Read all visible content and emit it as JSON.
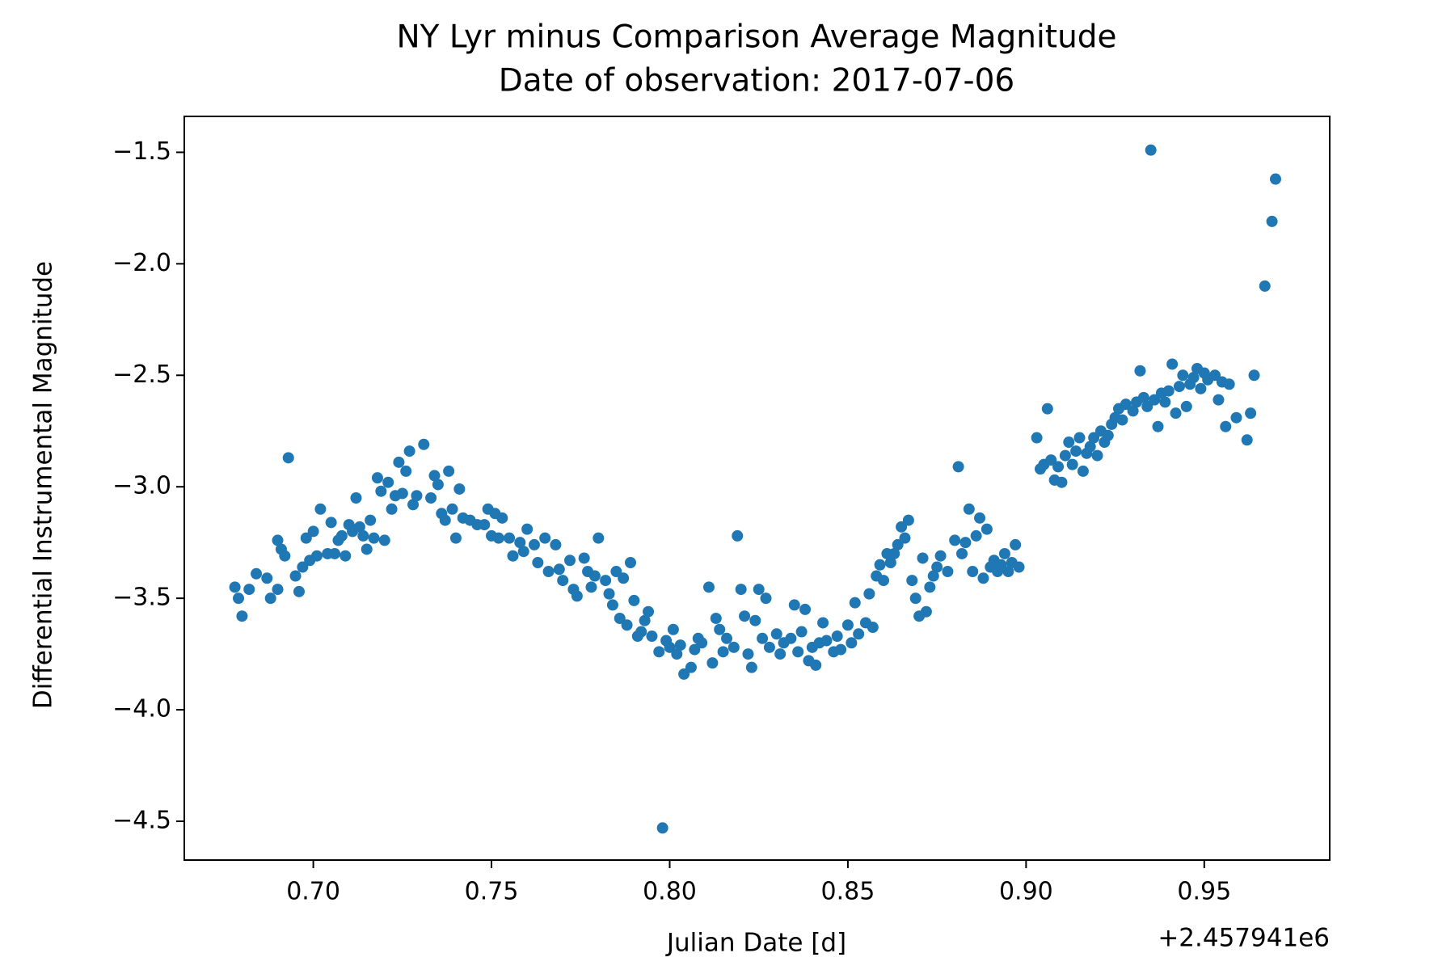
{
  "chart_data": {
    "type": "scatter",
    "title": "NY Lyr minus Comparison Average Magnitude",
    "subtitle": "Date of observation: 2017-07-06",
    "x_label": "Julian Date [d]",
    "y_label": "Differential Instrumental Magnitude",
    "x_offset_label": "+2.457941e6",
    "color": "#1f77b4",
    "xlim": [
      0.6638,
      0.9852
    ],
    "ylim": [
      -4.674,
      -1.339
    ],
    "xticks": [
      {
        "value": 0.7,
        "label": "0.70"
      },
      {
        "value": 0.75,
        "label": "0.75"
      },
      {
        "value": 0.8,
        "label": "0.80"
      },
      {
        "value": 0.85,
        "label": "0.85"
      },
      {
        "value": 0.9,
        "label": "0.90"
      },
      {
        "value": 0.95,
        "label": "0.95"
      }
    ],
    "yticks": [
      {
        "value": -1.5,
        "label": "−1.5"
      },
      {
        "value": -2.0,
        "label": "−2.0"
      },
      {
        "value": -2.5,
        "label": "−2.5"
      },
      {
        "value": -3.0,
        "label": "−3.0"
      },
      {
        "value": -3.5,
        "label": "−3.5"
      },
      {
        "value": -4.0,
        "label": "−4.0"
      },
      {
        "value": -4.5,
        "label": "−4.5"
      }
    ],
    "x": [
      0.678,
      0.679,
      0.68,
      0.682,
      0.684,
      0.687,
      0.688,
      0.69,
      0.69,
      0.691,
      0.692,
      0.693,
      0.695,
      0.696,
      0.697,
      0.698,
      0.699,
      0.7,
      0.701,
      0.702,
      0.704,
      0.705,
      0.706,
      0.707,
      0.708,
      0.709,
      0.71,
      0.711,
      0.712,
      0.713,
      0.714,
      0.715,
      0.716,
      0.717,
      0.718,
      0.719,
      0.72,
      0.721,
      0.722,
      0.723,
      0.724,
      0.725,
      0.726,
      0.727,
      0.728,
      0.729,
      0.731,
      0.733,
      0.734,
      0.735,
      0.736,
      0.737,
      0.738,
      0.739,
      0.74,
      0.741,
      0.742,
      0.744,
      0.746,
      0.748,
      0.749,
      0.75,
      0.751,
      0.752,
      0.753,
      0.755,
      0.756,
      0.758,
      0.759,
      0.76,
      0.762,
      0.763,
      0.765,
      0.766,
      0.768,
      0.769,
      0.77,
      0.772,
      0.773,
      0.774,
      0.776,
      0.777,
      0.778,
      0.779,
      0.78,
      0.782,
      0.783,
      0.784,
      0.785,
      0.786,
      0.787,
      0.788,
      0.789,
      0.79,
      0.791,
      0.792,
      0.793,
      0.794,
      0.795,
      0.797,
      0.798,
      0.799,
      0.8,
      0.801,
      0.802,
      0.803,
      0.804,
      0.806,
      0.807,
      0.808,
      0.809,
      0.811,
      0.812,
      0.813,
      0.814,
      0.815,
      0.816,
      0.818,
      0.819,
      0.82,
      0.821,
      0.822,
      0.823,
      0.824,
      0.825,
      0.826,
      0.827,
      0.828,
      0.83,
      0.831,
      0.832,
      0.834,
      0.835,
      0.836,
      0.837,
      0.838,
      0.839,
      0.84,
      0.841,
      0.842,
      0.843,
      0.844,
      0.846,
      0.847,
      0.848,
      0.85,
      0.851,
      0.852,
      0.853,
      0.855,
      0.856,
      0.857,
      0.858,
      0.859,
      0.86,
      0.861,
      0.862,
      0.863,
      0.864,
      0.865,
      0.866,
      0.867,
      0.868,
      0.869,
      0.87,
      0.871,
      0.872,
      0.873,
      0.874,
      0.875,
      0.876,
      0.878,
      0.88,
      0.881,
      0.882,
      0.883,
      0.884,
      0.885,
      0.886,
      0.887,
      0.888,
      0.889,
      0.89,
      0.891,
      0.892,
      0.893,
      0.894,
      0.895,
      0.896,
      0.897,
      0.898,
      0.903,
      0.904,
      0.905,
      0.906,
      0.907,
      0.908,
      0.909,
      0.91,
      0.911,
      0.912,
      0.913,
      0.914,
      0.915,
      0.916,
      0.917,
      0.918,
      0.919,
      0.92,
      0.921,
      0.922,
      0.923,
      0.924,
      0.925,
      0.926,
      0.927,
      0.928,
      0.93,
      0.931,
      0.932,
      0.933,
      0.934,
      0.935,
      0.936,
      0.937,
      0.938,
      0.939,
      0.94,
      0.941,
      0.942,
      0.943,
      0.944,
      0.945,
      0.946,
      0.947,
      0.948,
      0.949,
      0.95,
      0.951,
      0.953,
      0.954,
      0.955,
      0.956,
      0.957,
      0.959,
      0.962,
      0.963,
      0.964,
      0.967,
      0.969,
      0.97
    ],
    "values": [
      -3.45,
      -3.5,
      -3.58,
      -3.46,
      -3.39,
      -3.41,
      -3.5,
      -3.46,
      -3.24,
      -3.28,
      -3.31,
      -2.87,
      -3.4,
      -3.47,
      -3.36,
      -3.23,
      -3.33,
      -3.2,
      -3.31,
      -3.1,
      -3.3,
      -3.16,
      -3.3,
      -3.24,
      -3.22,
      -3.31,
      -3.17,
      -3.2,
      -3.05,
      -3.18,
      -3.22,
      -3.28,
      -3.15,
      -3.23,
      -2.96,
      -3.02,
      -3.24,
      -2.98,
      -3.1,
      -3.04,
      -2.89,
      -3.03,
      -2.93,
      -2.84,
      -3.08,
      -3.04,
      -2.81,
      -3.05,
      -2.95,
      -2.99,
      -3.12,
      -3.15,
      -2.93,
      -3.1,
      -3.23,
      -3.01,
      -3.14,
      -3.15,
      -3.17,
      -3.17,
      -3.1,
      -3.22,
      -3.12,
      -3.23,
      -3.14,
      -3.23,
      -3.31,
      -3.25,
      -3.29,
      -3.19,
      -3.26,
      -3.34,
      -3.23,
      -3.38,
      -3.26,
      -3.37,
      -3.42,
      -3.33,
      -3.46,
      -3.49,
      -3.32,
      -3.38,
      -3.45,
      -3.4,
      -3.23,
      -3.42,
      -3.48,
      -3.53,
      -3.38,
      -3.59,
      -3.41,
      -3.62,
      -3.34,
      -3.51,
      -3.67,
      -3.65,
      -3.6,
      -3.56,
      -3.67,
      -3.74,
      -4.53,
      -3.69,
      -3.72,
      -3.64,
      -3.75,
      -3.71,
      -3.84,
      -3.81,
      -3.73,
      -3.68,
      -3.7,
      -3.45,
      -3.79,
      -3.59,
      -3.64,
      -3.74,
      -3.68,
      -3.72,
      -3.22,
      -3.46,
      -3.58,
      -3.75,
      -3.81,
      -3.6,
      -3.46,
      -3.68,
      -3.5,
      -3.72,
      -3.66,
      -3.75,
      -3.7,
      -3.68,
      -3.53,
      -3.74,
      -3.65,
      -3.55,
      -3.78,
      -3.72,
      -3.8,
      -3.7,
      -3.61,
      -3.69,
      -3.74,
      -3.67,
      -3.73,
      -3.62,
      -3.7,
      -3.52,
      -3.66,
      -3.61,
      -3.48,
      -3.63,
      -3.4,
      -3.35,
      -3.42,
      -3.3,
      -3.34,
      -3.3,
      -3.26,
      -3.18,
      -3.23,
      -3.15,
      -3.42,
      -3.5,
      -3.58,
      -3.32,
      -3.56,
      -3.45,
      -3.4,
      -3.36,
      -3.31,
      -3.38,
      -3.24,
      -2.91,
      -3.3,
      -3.25,
      -3.1,
      -3.38,
      -3.22,
      -3.14,
      -3.41,
      -3.19,
      -3.36,
      -3.33,
      -3.38,
      -3.35,
      -3.3,
      -3.38,
      -3.34,
      -3.26,
      -3.36,
      -2.78,
      -2.92,
      -2.9,
      -2.65,
      -2.88,
      -2.97,
      -2.91,
      -2.98,
      -2.86,
      -2.8,
      -2.9,
      -2.84,
      -2.78,
      -2.93,
      -2.85,
      -2.82,
      -2.78,
      -2.86,
      -2.75,
      -2.8,
      -2.77,
      -2.72,
      -2.69,
      -2.65,
      -2.7,
      -2.63,
      -2.66,
      -2.62,
      -2.48,
      -2.6,
      -2.64,
      -1.49,
      -2.61,
      -2.73,
      -2.58,
      -2.62,
      -2.57,
      -2.45,
      -2.67,
      -2.55,
      -2.5,
      -2.64,
      -2.54,
      -2.51,
      -2.47,
      -2.56,
      -2.49,
      -2.52,
      -2.5,
      -2.61,
      -2.53,
      -2.73,
      -2.54,
      -2.69,
      -2.79,
      -2.67,
      -2.5,
      -2.1,
      -1.81,
      -1.62
    ]
  }
}
